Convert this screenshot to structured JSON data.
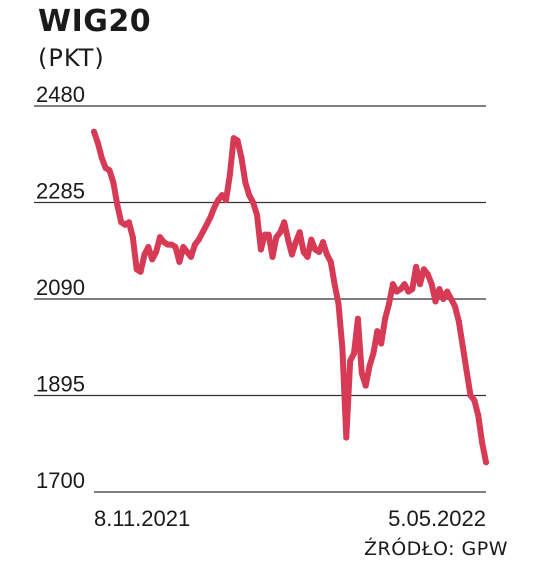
{
  "chart_data": {
    "type": "line",
    "title": "WIG20",
    "subtitle": "(PKT)",
    "source": "ŹRÓDŁO: GPW",
    "ylim": [
      1700,
      2480
    ],
    "yticks": [
      2480,
      2285,
      2090,
      1895,
      1700
    ],
    "xtick_labels": [
      "8.11.2021",
      "5.05.2022"
    ],
    "grid": "horizontal",
    "line_color": "#d63a55",
    "series": [
      {
        "values": [
          2428,
          2405,
          2375,
          2355,
          2350,
          2325,
          2280,
          2245,
          2240,
          2245,
          2215,
          2150,
          2145,
          2180,
          2195,
          2170,
          2185,
          2215,
          2205,
          2200,
          2200,
          2195,
          2165,
          2195,
          2185,
          2175,
          2200,
          2210,
          2225,
          2240,
          2255,
          2275,
          2290,
          2300,
          2290,
          2340,
          2415,
          2410,
          2375,
          2325,
          2300,
          2285,
          2260,
          2190,
          2220,
          2220,
          2175,
          2215,
          2225,
          2245,
          2210,
          2180,
          2205,
          2225,
          2185,
          2175,
          2210,
          2190,
          2185,
          2205,
          2180,
          2165,
          2120,
          2080,
          1990,
          1810,
          1965,
          1980,
          2050,
          1940,
          1915,
          1955,
          1980,
          2025,
          2000,
          2050,
          2080,
          2120,
          2105,
          2110,
          2120,
          2105,
          2110,
          2155,
          2120,
          2150,
          2140,
          2120,
          2085,
          2110,
          2090,
          2105,
          2090,
          2075,
          2045,
          1995,
          1945,
          1895,
          1885,
          1855,
          1800,
          1760
        ]
      }
    ]
  }
}
